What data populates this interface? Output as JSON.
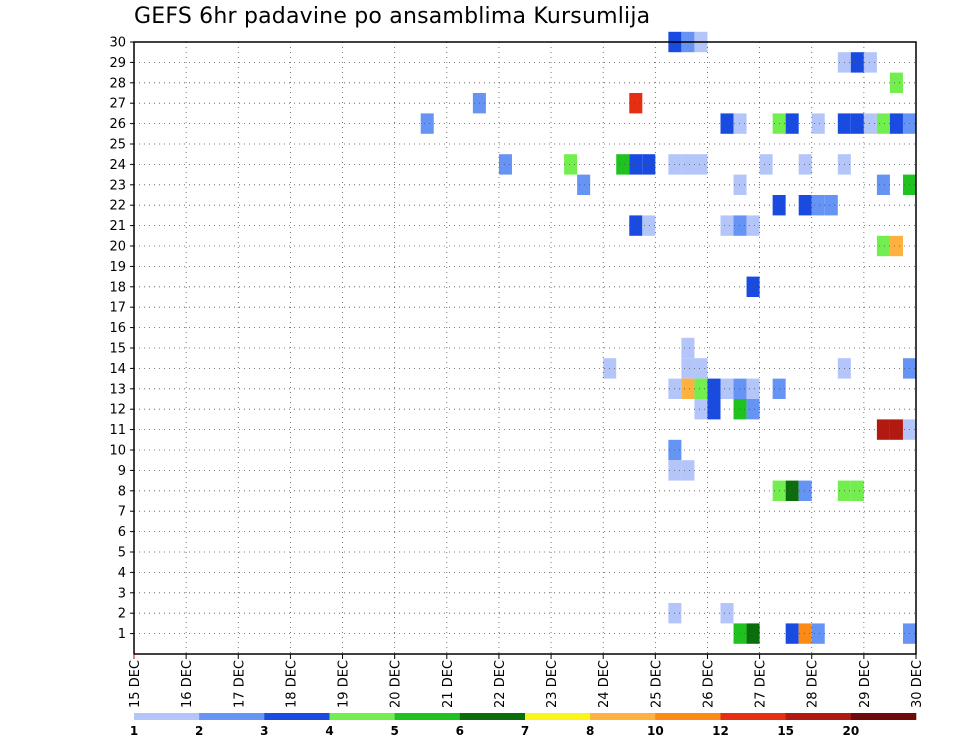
{
  "chart_data": {
    "type": "heatmap",
    "title": "GEFS 6hr padavine po ansamblima Kursumlija",
    "x_labels": [
      "15 DEC",
      "16 DEC",
      "17 DEC",
      "18 DEC",
      "19 DEC",
      "20 DEC",
      "21 DEC",
      "22 DEC",
      "23 DEC",
      "24 DEC",
      "25 DEC",
      "26 DEC",
      "27 DEC",
      "28 DEC",
      "29 DEC",
      "30 DEC"
    ],
    "x_range_days": [
      15,
      30
    ],
    "steps_per_day": 4,
    "y_labels": [
      "1",
      "2",
      "3",
      "4",
      "5",
      "6",
      "7",
      "8",
      "9",
      "10",
      "11",
      "12",
      "13",
      "14",
      "15",
      "16",
      "17",
      "18",
      "19",
      "20",
      "21",
      "22",
      "23",
      "24",
      "25",
      "26",
      "27",
      "28",
      "29",
      "30"
    ],
    "y_range": [
      0,
      30
    ],
    "grid": true,
    "legend": {
      "position": "bottom",
      "labels": [
        "1",
        "2",
        "3",
        "4",
        "5",
        "6",
        "7",
        "8",
        "10",
        "12",
        "15",
        "20"
      ],
      "colors": [
        "#b4c5fa",
        "#6694f5",
        "#1a4be0",
        "#72ee4e",
        "#20c220",
        "#0b6d0b",
        "#fcf51a",
        "#feb13e",
        "#fb8a16",
        "#e52e12",
        "#b01a10",
        "#6f0a0a"
      ]
    },
    "cells": [
      {
        "member": 30,
        "day": 25.25,
        "level": 3
      },
      {
        "member": 30,
        "day": 25.5,
        "level": 2
      },
      {
        "member": 30,
        "day": 25.75,
        "level": 1
      },
      {
        "member": 29,
        "day": 28.5,
        "level": 1
      },
      {
        "member": 29,
        "day": 28.75,
        "level": 3
      },
      {
        "member": 29,
        "day": 29.0,
        "level": 1
      },
      {
        "member": 28,
        "day": 29.5,
        "level": 4
      },
      {
        "member": 27,
        "day": 21.5,
        "level": 2
      },
      {
        "member": 27,
        "day": 24.5,
        "level": 10
      },
      {
        "member": 26,
        "day": 20.5,
        "level": 2
      },
      {
        "member": 26,
        "day": 26.25,
        "level": 3
      },
      {
        "member": 26,
        "day": 26.5,
        "level": 1
      },
      {
        "member": 26,
        "day": 27.25,
        "level": 4
      },
      {
        "member": 26,
        "day": 27.5,
        "level": 3
      },
      {
        "member": 26,
        "day": 28.0,
        "level": 1
      },
      {
        "member": 26,
        "day": 28.5,
        "level": 3
      },
      {
        "member": 26,
        "day": 28.75,
        "level": 3
      },
      {
        "member": 26,
        "day": 29.0,
        "level": 1
      },
      {
        "member": 26,
        "day": 29.25,
        "level": 4
      },
      {
        "member": 26,
        "day": 29.5,
        "level": 3
      },
      {
        "member": 26,
        "day": 29.75,
        "level": 2
      },
      {
        "member": 24,
        "day": 22.0,
        "level": 2
      },
      {
        "member": 24,
        "day": 23.25,
        "level": 4
      },
      {
        "member": 24,
        "day": 24.25,
        "level": 5
      },
      {
        "member": 24,
        "day": 24.5,
        "level": 3
      },
      {
        "member": 24,
        "day": 24.75,
        "level": 3
      },
      {
        "member": 24,
        "day": 25.25,
        "level": 1
      },
      {
        "member": 24,
        "day": 25.5,
        "level": 1
      },
      {
        "member": 24,
        "day": 25.75,
        "level": 1
      },
      {
        "member": 24,
        "day": 27.0,
        "level": 1
      },
      {
        "member": 24,
        "day": 27.75,
        "level": 1
      },
      {
        "member": 24,
        "day": 28.5,
        "level": 1
      },
      {
        "member": 23,
        "day": 23.5,
        "level": 2
      },
      {
        "member": 23,
        "day": 26.5,
        "level": 1
      },
      {
        "member": 23,
        "day": 29.25,
        "level": 2
      },
      {
        "member": 23,
        "day": 29.75,
        "level": 5
      },
      {
        "member": 22,
        "day": 27.25,
        "level": 3
      },
      {
        "member": 22,
        "day": 27.75,
        "level": 3
      },
      {
        "member": 22,
        "day": 28.0,
        "level": 2
      },
      {
        "member": 22,
        "day": 28.25,
        "level": 2
      },
      {
        "member": 21,
        "day": 24.5,
        "level": 3
      },
      {
        "member": 21,
        "day": 24.75,
        "level": 1
      },
      {
        "member": 21,
        "day": 26.25,
        "level": 1
      },
      {
        "member": 21,
        "day": 26.5,
        "level": 2
      },
      {
        "member": 21,
        "day": 26.75,
        "level": 1
      },
      {
        "member": 20,
        "day": 29.25,
        "level": 4
      },
      {
        "member": 20,
        "day": 29.5,
        "level": 8
      },
      {
        "member": 18,
        "day": 26.75,
        "level": 3
      },
      {
        "member": 15,
        "day": 25.5,
        "level": 1
      },
      {
        "member": 14,
        "day": 24.0,
        "level": 1
      },
      {
        "member": 14,
        "day": 25.5,
        "level": 1
      },
      {
        "member": 14,
        "day": 25.75,
        "level": 1
      },
      {
        "member": 14,
        "day": 28.5,
        "level": 1
      },
      {
        "member": 14,
        "day": 29.75,
        "level": 2
      },
      {
        "member": 13,
        "day": 25.25,
        "level": 1
      },
      {
        "member": 13,
        "day": 25.5,
        "level": 8
      },
      {
        "member": 13,
        "day": 25.75,
        "level": 4
      },
      {
        "member": 13,
        "day": 26.0,
        "level": 3
      },
      {
        "member": 13,
        "day": 26.25,
        "level": 1
      },
      {
        "member": 13,
        "day": 26.5,
        "level": 2
      },
      {
        "member": 13,
        "day": 26.75,
        "level": 1
      },
      {
        "member": 13,
        "day": 27.25,
        "level": 2
      },
      {
        "member": 12,
        "day": 25.75,
        "level": 1
      },
      {
        "member": 12,
        "day": 26.0,
        "level": 3
      },
      {
        "member": 12,
        "day": 26.5,
        "level": 5
      },
      {
        "member": 12,
        "day": 26.75,
        "level": 2
      },
      {
        "member": 11,
        "day": 29.25,
        "level": 11
      },
      {
        "member": 11,
        "day": 29.5,
        "level": 11
      },
      {
        "member": 11,
        "day": 29.75,
        "level": 1
      },
      {
        "member": 10,
        "day": 25.25,
        "level": 2
      },
      {
        "member": 9,
        "day": 25.25,
        "level": 1
      },
      {
        "member": 9,
        "day": 25.5,
        "level": 1
      },
      {
        "member": 8,
        "day": 27.25,
        "level": 4
      },
      {
        "member": 8,
        "day": 27.5,
        "level": 6
      },
      {
        "member": 8,
        "day": 27.75,
        "level": 2
      },
      {
        "member": 8,
        "day": 28.5,
        "level": 4
      },
      {
        "member": 8,
        "day": 28.75,
        "level": 4
      },
      {
        "member": 2,
        "day": 25.25,
        "level": 1
      },
      {
        "member": 2,
        "day": 26.25,
        "level": 1
      },
      {
        "member": 1,
        "day": 26.5,
        "level": 5
      },
      {
        "member": 1,
        "day": 26.75,
        "level": 6
      },
      {
        "member": 1,
        "day": 27.5,
        "level": 3
      },
      {
        "member": 1,
        "day": 27.75,
        "level": 9
      },
      {
        "member": 1,
        "day": 28.0,
        "level": 2
      },
      {
        "member": 1,
        "day": 29.75,
        "level": 2
      }
    ]
  }
}
